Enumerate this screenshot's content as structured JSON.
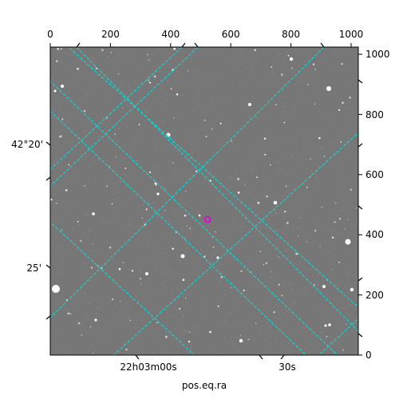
{
  "figure": {
    "pixel_axis": {
      "x_ticks": [
        "0",
        "200",
        "400",
        "600",
        "800",
        "1000"
      ],
      "y_ticks": [
        "0",
        "200",
        "400",
        "600",
        "800",
        "1000"
      ]
    },
    "celestial_axis": {
      "label": "pos.eq.ra",
      "ra_ticks": [
        "22h03m00s",
        "30s"
      ],
      "dec_ticks": [
        "42°20'",
        "25'"
      ]
    },
    "colors": {
      "background": "#777777",
      "grid": "#00e5e5",
      "marker": "#e000e0"
    }
  }
}
